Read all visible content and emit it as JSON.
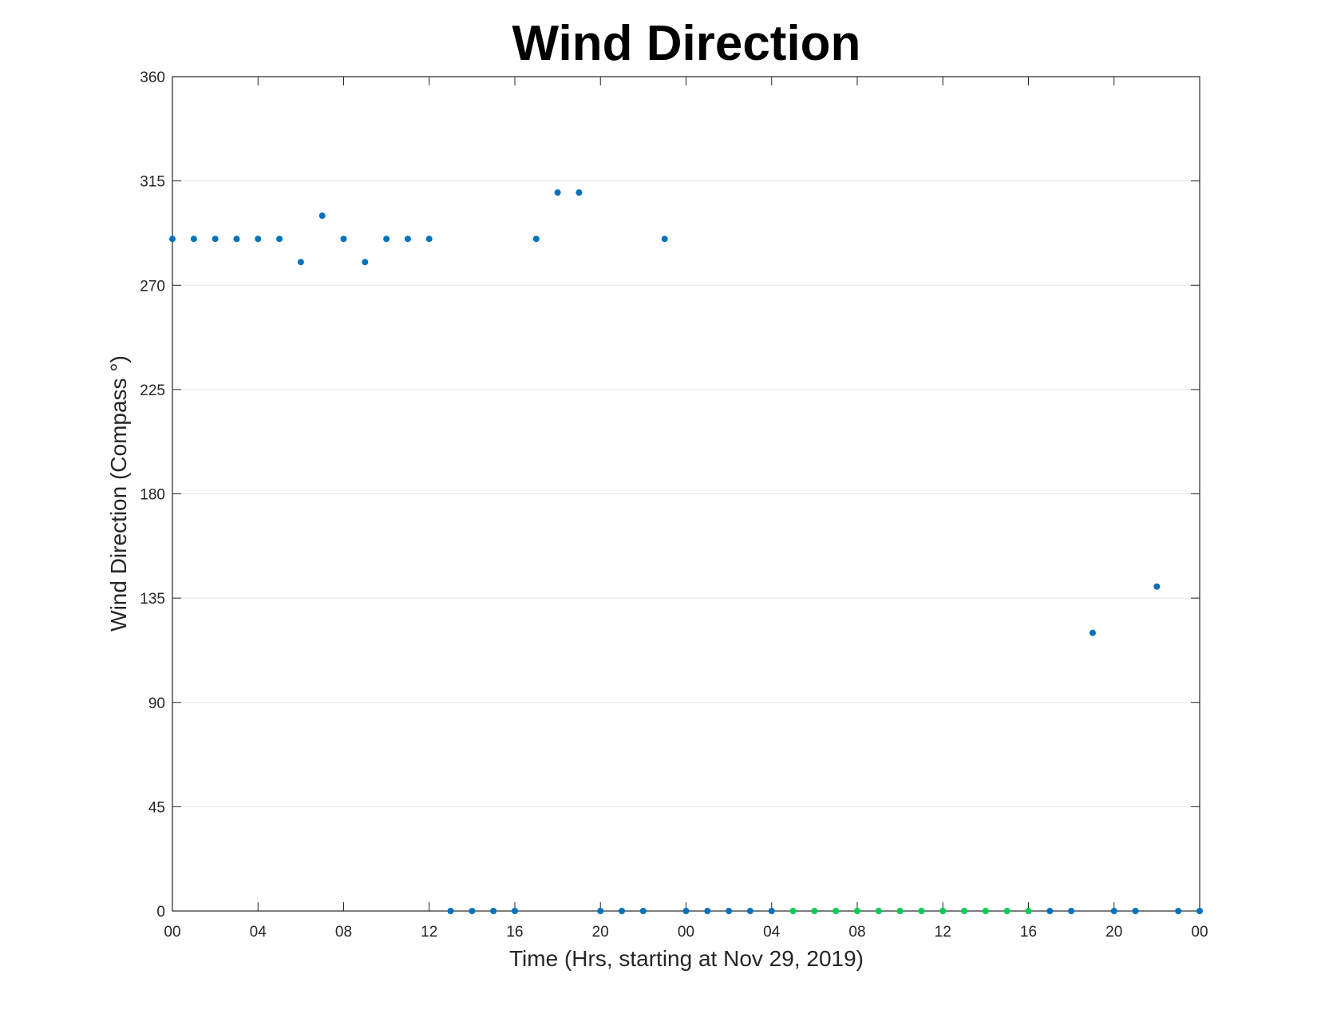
{
  "chart_data": {
    "type": "scatter",
    "title": "Wind Direction",
    "xlabel": "Time (Hrs, starting at Nov 29, 2019)",
    "ylabel": "Wind Direction (Compass °)",
    "xlim": [
      0,
      48
    ],
    "ylim": [
      0,
      360
    ],
    "x_tick_values": [
      0,
      4,
      8,
      12,
      16,
      20,
      24,
      28,
      32,
      36,
      40,
      44,
      48
    ],
    "x_tick_labels": [
      "00",
      "04",
      "08",
      "12",
      "16",
      "20",
      "00",
      "04",
      "08",
      "12",
      "16",
      "20",
      "00"
    ],
    "y_tick_values": [
      0,
      45,
      90,
      135,
      180,
      225,
      270,
      315,
      360
    ],
    "y_tick_labels": [
      "0",
      "45",
      "90",
      "135",
      "180",
      "225",
      "270",
      "315",
      "360"
    ],
    "grid": "horizontal",
    "series": [
      {
        "color": "#0072bd",
        "x": [
          0,
          1,
          2,
          3,
          4,
          5,
          6,
          7,
          8,
          9,
          10,
          11,
          12,
          13,
          14,
          15,
          16,
          17,
          18,
          19,
          20,
          21,
          22,
          23,
          24,
          25,
          26,
          27,
          28,
          41,
          42,
          43,
          44,
          45,
          46,
          47,
          48
        ],
        "y": [
          290,
          290,
          290,
          290,
          290,
          290,
          280,
          300,
          290,
          280,
          290,
          290,
          290,
          0,
          0,
          0,
          0,
          290,
          310,
          310,
          0,
          0,
          0,
          290,
          0,
          0,
          0,
          0,
          0,
          0,
          0,
          120,
          0,
          0,
          140,
          0,
          0
        ]
      },
      {
        "color": "#00cc55",
        "x": [
          29,
          30,
          31,
          32,
          33,
          34,
          35,
          36,
          37,
          38,
          39,
          40
        ],
        "y": [
          0,
          0,
          0,
          0,
          0,
          0,
          0,
          0,
          0,
          0,
          0,
          0
        ]
      }
    ]
  }
}
